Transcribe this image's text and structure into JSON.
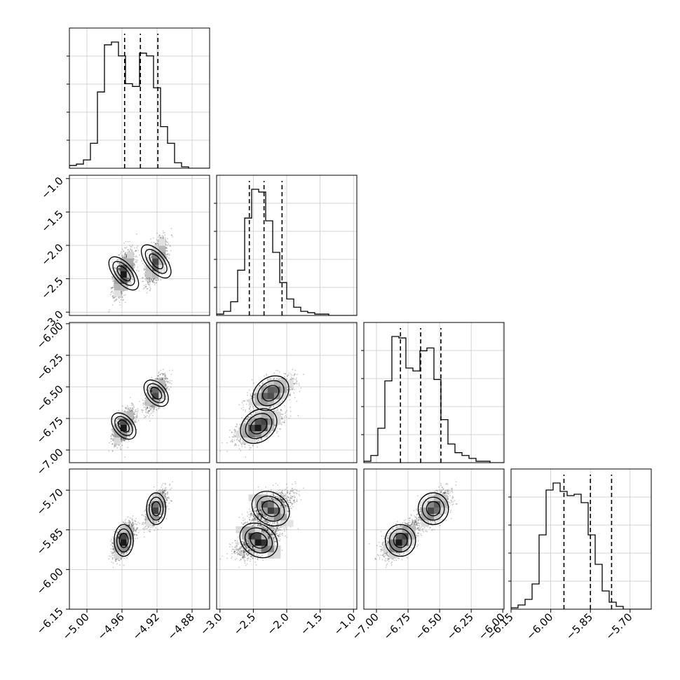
{
  "chart_data": {
    "type": "corner",
    "title": "",
    "grid": true,
    "parameters": [
      {
        "label": "",
        "range": [
          -5.02,
          -4.86
        ],
        "ticks": [
          -5.0,
          -4.96,
          -4.92,
          -4.88
        ],
        "tick_labels": [
          "−5.00",
          "−4.96",
          "−4.92",
          "−4.88"
        ],
        "quantiles": [
          -4.957,
          -4.939,
          -4.919
        ],
        "histogram": {
          "bin_start": -5.02,
          "bin_width": 0.008,
          "counts": [
            2,
            3,
            6,
            18,
            55,
            89,
            91,
            81,
            61,
            59,
            83,
            81,
            58,
            30,
            18,
            4,
            1,
            0,
            0,
            0
          ]
        },
        "modes": [
          {
            "m": -4.958,
            "s": 0.0055
          },
          {
            "m": -4.922,
            "s": 0.0055
          }
        ]
      },
      {
        "label": "",
        "range": [
          -3.05,
          -0.95
        ],
        "ticks": [
          -3.0,
          -2.5,
          -2.0,
          -1.5,
          -1.0
        ],
        "tick_labels": [
          "−3.0",
          "−2.5",
          "−2.0",
          "−1.5",
          "−1.0"
        ],
        "quantiles": [
          -2.56,
          -2.34,
          -2.07
        ],
        "histogram": {
          "bin_start": -3.05,
          "bin_width": 0.105,
          "counts": [
            1,
            3,
            10,
            33,
            71,
            92,
            90,
            69,
            46,
            24,
            12,
            6,
            3,
            2,
            1,
            1,
            0,
            0,
            0,
            0
          ]
        },
        "modes": [
          {
            "m": -2.45,
            "s": 0.15
          },
          {
            "m": -2.2,
            "s": 0.15
          }
        ]
      },
      {
        "label": "",
        "range": [
          -7.1,
          -5.99
        ],
        "ticks": [
          -7.0,
          -6.75,
          -6.5,
          -6.25,
          -6.0
        ],
        "tick_labels": [
          "−7.00",
          "−6.75",
          "−6.50",
          "−6.25",
          "−6.00"
        ],
        "quantiles": [
          -6.81,
          -6.65,
          -6.49
        ],
        "histogram": {
          "bin_start": -7.1,
          "bin_width": 0.0555,
          "counts": [
            1,
            5,
            24,
            57,
            88,
            87,
            66,
            64,
            78,
            80,
            58,
            30,
            13,
            7,
            5,
            3,
            1,
            1,
            0,
            0
          ]
        },
        "modes": [
          {
            "m": -6.8,
            "s": 0.06
          },
          {
            "m": -6.55,
            "s": 0.06
          }
        ]
      },
      {
        "label": "",
        "range": [
          -6.15,
          -5.62
        ],
        "ticks": [
          -6.15,
          -6.0,
          -5.85,
          -5.7
        ],
        "tick_labels": [
          "−6.15",
          "−6.00",
          "−5.85",
          "−5.70"
        ],
        "quantiles": [
          -5.95,
          -5.85,
          -5.77
        ],
        "histogram": {
          "bin_start": -6.15,
          "bin_width": 0.0265,
          "counts": [
            1,
            3,
            7,
            18,
            53,
            85,
            90,
            84,
            81,
            82,
            76,
            53,
            32,
            13,
            5,
            2,
            0,
            0,
            0,
            0
          ]
        },
        "modes": [
          {
            "m": -5.9,
            "s": 0.03
          },
          {
            "m": -5.77,
            "s": 0.03
          }
        ]
      }
    ],
    "joint_modes": [
      {
        "weight": 0.55,
        "mean": [
          -4.958,
          -2.42,
          -6.81,
          -5.89
        ]
      },
      {
        "weight": 0.45,
        "mean": [
          -4.921,
          -2.24,
          -6.55,
          -5.77
        ]
      }
    ]
  }
}
